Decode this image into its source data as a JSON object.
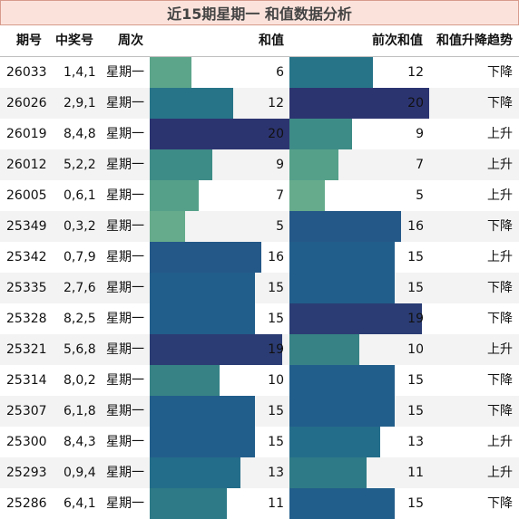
{
  "title": "近15期星期一 和值数据分析",
  "headers": {
    "period": "期号",
    "numbers": "中奖号",
    "weekday": "周次",
    "sum": "和值",
    "prev_sum": "前次和值",
    "trend": "和值升降趋势"
  },
  "chart_data": {
    "type": "table",
    "title": "近15期星期一 和值数据分析",
    "columns": [
      "期号",
      "中奖号",
      "周次",
      "和值",
      "前次和值",
      "和值升降趋势"
    ],
    "bar_scale_max": 20,
    "colors": {
      "5": "#66ab8c",
      "6": "#5ca58b",
      "7": "#55a089",
      "9": "#3e8c87",
      "10": "#368285",
      "11": "#2e7a87",
      "12": "#277488",
      "13": "#246d8a",
      "15": "#225e8b",
      "16": "#245888",
      "19": "#2b3c74",
      "20": "#2c3470",
      "row_alt": "#f3f3f3",
      "title_bg": "#fbe3dc",
      "title_border": "#d79b8c"
    },
    "rows": [
      {
        "period": "26033",
        "numbers": "1,4,1",
        "weekday": "星期一",
        "sum": 6,
        "prev_sum": 12,
        "trend": "下降"
      },
      {
        "period": "26026",
        "numbers": "2,9,1",
        "weekday": "星期一",
        "sum": 12,
        "prev_sum": 20,
        "trend": "下降"
      },
      {
        "period": "26019",
        "numbers": "8,4,8",
        "weekday": "星期一",
        "sum": 20,
        "prev_sum": 9,
        "trend": "上升"
      },
      {
        "period": "26012",
        "numbers": "5,2,2",
        "weekday": "星期一",
        "sum": 9,
        "prev_sum": 7,
        "trend": "上升"
      },
      {
        "period": "26005",
        "numbers": "0,6,1",
        "weekday": "星期一",
        "sum": 7,
        "prev_sum": 5,
        "trend": "上升"
      },
      {
        "period": "25349",
        "numbers": "0,3,2",
        "weekday": "星期一",
        "sum": 5,
        "prev_sum": 16,
        "trend": "下降"
      },
      {
        "period": "25342",
        "numbers": "0,7,9",
        "weekday": "星期一",
        "sum": 16,
        "prev_sum": 15,
        "trend": "上升"
      },
      {
        "period": "25335",
        "numbers": "2,7,6",
        "weekday": "星期一",
        "sum": 15,
        "prev_sum": 15,
        "trend": "下降"
      },
      {
        "period": "25328",
        "numbers": "8,2,5",
        "weekday": "星期一",
        "sum": 15,
        "prev_sum": 19,
        "trend": "下降"
      },
      {
        "period": "25321",
        "numbers": "5,6,8",
        "weekday": "星期一",
        "sum": 19,
        "prev_sum": 10,
        "trend": "上升"
      },
      {
        "period": "25314",
        "numbers": "8,0,2",
        "weekday": "星期一",
        "sum": 10,
        "prev_sum": 15,
        "trend": "下降"
      },
      {
        "period": "25307",
        "numbers": "6,1,8",
        "weekday": "星期一",
        "sum": 15,
        "prev_sum": 15,
        "trend": "下降"
      },
      {
        "period": "25300",
        "numbers": "8,4,3",
        "weekday": "星期一",
        "sum": 15,
        "prev_sum": 13,
        "trend": "上升"
      },
      {
        "period": "25293",
        "numbers": "0,9,4",
        "weekday": "星期一",
        "sum": 13,
        "prev_sum": 11,
        "trend": "上升"
      },
      {
        "period": "25286",
        "numbers": "6,4,1",
        "weekday": "星期一",
        "sum": 11,
        "prev_sum": 15,
        "trend": "下降"
      }
    ]
  }
}
